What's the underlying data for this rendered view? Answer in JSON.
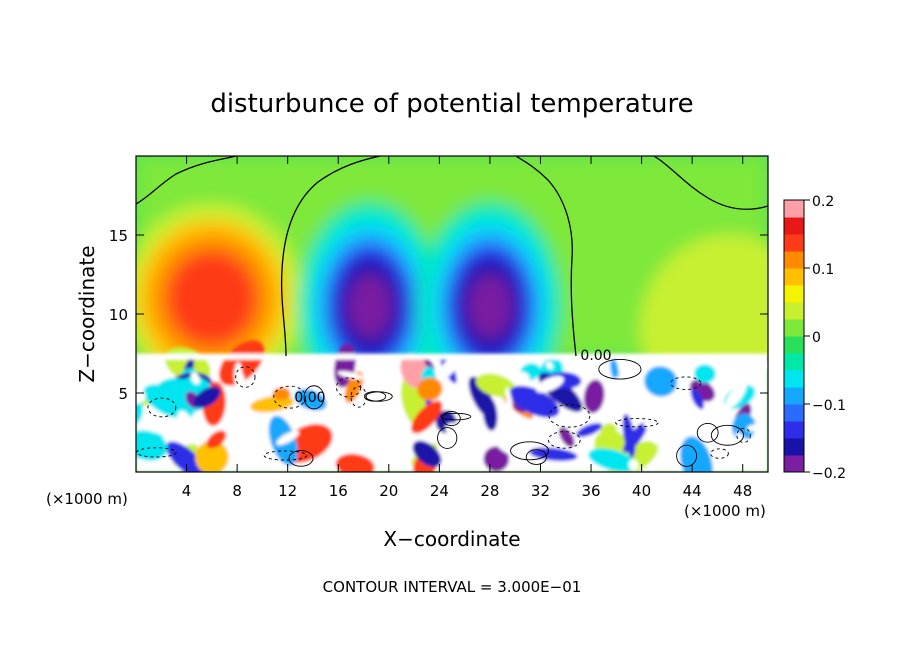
{
  "chart_data": {
    "type": "heatmap",
    "title": "disturbunce of potential temperature",
    "xlabel": "X−coordinate",
    "ylabel": "Z−coordinate",
    "x_unit_left": "(×1000 m)",
    "x_unit_right": "(×1000 m)",
    "xlim": [
      0,
      50
    ],
    "ylim": [
      0,
      20
    ],
    "x_ticks": [
      4,
      8,
      12,
      16,
      20,
      24,
      28,
      32,
      36,
      40,
      44,
      48
    ],
    "y_ticks": [
      5,
      10,
      15
    ],
    "colorbar": {
      "vmin": -0.2,
      "vmax": 0.2,
      "ticks": [
        0.2,
        0.1,
        0,
        -0.1,
        -0.2
      ],
      "tick_labels": [
        "0.2",
        "0.1",
        "0",
        "−0.1",
        "−0.2"
      ]
    },
    "contour_labels": [
      "0.00",
      "0.00"
    ],
    "contour_interval_text": "CONTOUR INTERVAL = 3.000E−01",
    "fields": {
      "upper_warm_plumes": [
        {
          "x": 6,
          "z": 11,
          "value": 0.15
        },
        {
          "x": 47,
          "z": 9,
          "value": 0.04
        }
      ],
      "upper_cold_plumes": [
        {
          "x": 18.5,
          "z": 10.5,
          "value": -0.18
        },
        {
          "x": 28,
          "z": 10.5,
          "value": -0.18
        }
      ],
      "boundary_layer_top_z": 7.3
    }
  }
}
